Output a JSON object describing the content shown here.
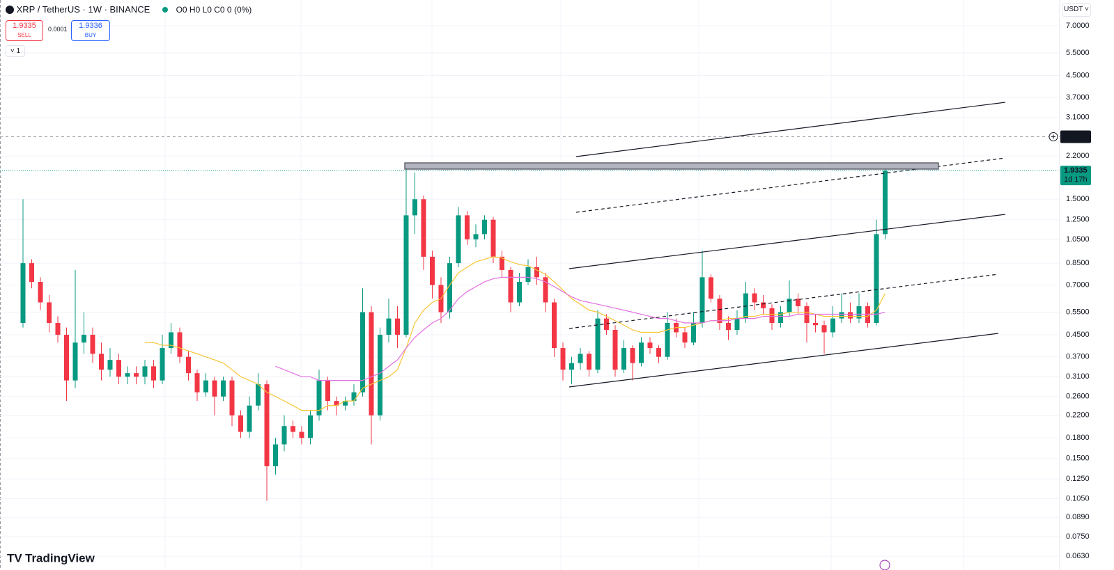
{
  "header": {
    "symbol": "XRP / TetherUS · 1W · BINANCE",
    "ohlc": "O0 H0 L0 C0 0 (0%)",
    "sell_price": 1.9335,
    "sell_label": "SELL",
    "spread": 0.0001,
    "buy_price": 1.9336,
    "buy_label": "BUY",
    "indicators": 1,
    "currency": "USDT"
  },
  "chart_data": {
    "type": "candlestick",
    "candles": [
      [
        0.5,
        1.5,
        0.48,
        0.85
      ],
      [
        0.85,
        0.88,
        0.68,
        0.72
      ],
      [
        0.72,
        0.75,
        0.56,
        0.6
      ],
      [
        0.6,
        0.64,
        0.46,
        0.5
      ],
      [
        0.5,
        0.53,
        0.42,
        0.45
      ],
      [
        0.45,
        0.48,
        0.25,
        0.3
      ],
      [
        0.3,
        0.8,
        0.28,
        0.42
      ],
      [
        0.42,
        0.55,
        0.38,
        0.45
      ],
      [
        0.45,
        0.48,
        0.35,
        0.38
      ],
      [
        0.38,
        0.42,
        0.3,
        0.33
      ],
      [
        0.33,
        0.4,
        0.31,
        0.36
      ],
      [
        0.36,
        0.38,
        0.29,
        0.31
      ],
      [
        0.31,
        0.34,
        0.29,
        0.32
      ],
      [
        0.32,
        0.34,
        0.29,
        0.31
      ],
      [
        0.31,
        0.36,
        0.29,
        0.34
      ],
      [
        0.34,
        0.36,
        0.28,
        0.3
      ],
      [
        0.3,
        0.45,
        0.29,
        0.4
      ],
      [
        0.4,
        0.5,
        0.38,
        0.46
      ],
      [
        0.46,
        0.48,
        0.35,
        0.37
      ],
      [
        0.37,
        0.39,
        0.3,
        0.32
      ],
      [
        0.32,
        0.33,
        0.25,
        0.27
      ],
      [
        0.27,
        0.32,
        0.26,
        0.3
      ],
      [
        0.3,
        0.31,
        0.22,
        0.26
      ],
      [
        0.26,
        0.31,
        0.25,
        0.3
      ],
      [
        0.3,
        0.31,
        0.2,
        0.22
      ],
      [
        0.22,
        0.23,
        0.18,
        0.19
      ],
      [
        0.19,
        0.26,
        0.18,
        0.24
      ],
      [
        0.24,
        0.32,
        0.23,
        0.29
      ],
      [
        0.29,
        0.3,
        0.103,
        0.14
      ],
      [
        0.14,
        0.18,
        0.13,
        0.17
      ],
      [
        0.17,
        0.22,
        0.16,
        0.2
      ],
      [
        0.2,
        0.21,
        0.18,
        0.19
      ],
      [
        0.19,
        0.2,
        0.17,
        0.18
      ],
      [
        0.18,
        0.23,
        0.17,
        0.22
      ],
      [
        0.22,
        0.33,
        0.21,
        0.3
      ],
      [
        0.3,
        0.31,
        0.23,
        0.25
      ],
      [
        0.25,
        0.26,
        0.22,
        0.24
      ],
      [
        0.24,
        0.26,
        0.23,
        0.25
      ],
      [
        0.25,
        0.29,
        0.24,
        0.27
      ],
      [
        0.27,
        0.68,
        0.26,
        0.55
      ],
      [
        0.55,
        0.58,
        0.17,
        0.22
      ],
      [
        0.22,
        0.48,
        0.21,
        0.45
      ],
      [
        0.45,
        0.62,
        0.42,
        0.52
      ],
      [
        0.52,
        0.58,
        0.4,
        0.45
      ],
      [
        0.45,
        1.96,
        0.44,
        1.3
      ],
      [
        1.3,
        1.9,
        1.1,
        1.5
      ],
      [
        1.5,
        1.55,
        0.8,
        0.9
      ],
      [
        0.9,
        0.95,
        0.62,
        0.7
      ],
      [
        0.7,
        0.75,
        0.5,
        0.55
      ],
      [
        0.55,
        0.9,
        0.52,
        0.85
      ],
      [
        0.85,
        1.4,
        0.82,
        1.3
      ],
      [
        1.3,
        1.35,
        1.0,
        1.05
      ],
      [
        1.05,
        1.2,
        0.98,
        1.1
      ],
      [
        1.1,
        1.3,
        1.05,
        1.25
      ],
      [
        1.25,
        1.28,
        0.85,
        0.9
      ],
      [
        0.9,
        0.95,
        0.75,
        0.8
      ],
      [
        0.8,
        0.82,
        0.55,
        0.6
      ],
      [
        0.6,
        0.78,
        0.58,
        0.72
      ],
      [
        0.72,
        0.88,
        0.7,
        0.82
      ],
      [
        0.82,
        0.9,
        0.7,
        0.75
      ],
      [
        0.75,
        0.78,
        0.55,
        0.6
      ],
      [
        0.6,
        0.62,
        0.37,
        0.4
      ],
      [
        0.4,
        0.42,
        0.3,
        0.33
      ],
      [
        0.33,
        0.37,
        0.29,
        0.35
      ],
      [
        0.35,
        0.4,
        0.33,
        0.38
      ],
      [
        0.38,
        0.39,
        0.31,
        0.33
      ],
      [
        0.33,
        0.56,
        0.32,
        0.52
      ],
      [
        0.52,
        0.54,
        0.45,
        0.47
      ],
      [
        0.47,
        0.49,
        0.31,
        0.33
      ],
      [
        0.33,
        0.43,
        0.32,
        0.4
      ],
      [
        0.4,
        0.41,
        0.3,
        0.35
      ],
      [
        0.35,
        0.44,
        0.34,
        0.42
      ],
      [
        0.42,
        0.44,
        0.38,
        0.4
      ],
      [
        0.4,
        0.41,
        0.35,
        0.37
      ],
      [
        0.37,
        0.55,
        0.36,
        0.5
      ],
      [
        0.5,
        0.52,
        0.44,
        0.46
      ],
      [
        0.46,
        0.48,
        0.4,
        0.42
      ],
      [
        0.42,
        0.55,
        0.41,
        0.5
      ],
      [
        0.5,
        0.95,
        0.48,
        0.75
      ],
      [
        0.75,
        0.77,
        0.6,
        0.62
      ],
      [
        0.62,
        0.64,
        0.47,
        0.5
      ],
      [
        0.5,
        0.53,
        0.43,
        0.47
      ],
      [
        0.47,
        0.56,
        0.45,
        0.52
      ],
      [
        0.52,
        0.72,
        0.5,
        0.65
      ],
      [
        0.65,
        0.68,
        0.56,
        0.6
      ],
      [
        0.6,
        0.64,
        0.54,
        0.57
      ],
      [
        0.57,
        0.59,
        0.47,
        0.5
      ],
      [
        0.5,
        0.58,
        0.48,
        0.55
      ],
      [
        0.55,
        0.73,
        0.53,
        0.62
      ],
      [
        0.62,
        0.65,
        0.54,
        0.58
      ],
      [
        0.58,
        0.6,
        0.42,
        0.5
      ],
      [
        0.5,
        0.54,
        0.46,
        0.49
      ],
      [
        0.49,
        0.51,
        0.38,
        0.46
      ],
      [
        0.46,
        0.58,
        0.44,
        0.52
      ],
      [
        0.52,
        0.65,
        0.5,
        0.55
      ],
      [
        0.55,
        0.6,
        0.5,
        0.52
      ],
      [
        0.52,
        0.65,
        0.5,
        0.58
      ],
      [
        0.58,
        0.6,
        0.48,
        0.5
      ],
      [
        0.5,
        1.25,
        0.49,
        1.1
      ],
      [
        1.1,
        1.96,
        1.05,
        1.9335
      ]
    ],
    "up_color": "#089981",
    "down_color": "#f23645",
    "moving_averages": [
      {
        "color": "#f7c531",
        "values": [
          null,
          null,
          null,
          null,
          null,
          null,
          null,
          null,
          null,
          null,
          null,
          null,
          null,
          null,
          0.42,
          0.42,
          0.41,
          0.41,
          0.4,
          0.39,
          0.38,
          0.37,
          0.36,
          0.35,
          0.33,
          0.31,
          0.3,
          0.29,
          0.27,
          0.26,
          0.25,
          0.24,
          0.23,
          0.23,
          0.23,
          0.24,
          0.24,
          0.25,
          0.25,
          0.28,
          0.29,
          0.3,
          0.31,
          0.33,
          0.4,
          0.5,
          0.56,
          0.6,
          0.62,
          0.7,
          0.78,
          0.82,
          0.86,
          0.88,
          0.9,
          0.89,
          0.86,
          0.84,
          0.83,
          0.8,
          0.77,
          0.72,
          0.67,
          0.62,
          0.59,
          0.56,
          0.55,
          0.53,
          0.51,
          0.49,
          0.47,
          0.46,
          0.46,
          0.46,
          0.47,
          0.48,
          0.48,
          0.49,
          0.5,
          0.51,
          0.51,
          0.52,
          0.52,
          0.53,
          0.53,
          0.54,
          0.54,
          0.54,
          0.55,
          0.55,
          0.55,
          0.54,
          0.53,
          0.53,
          0.53,
          0.53,
          0.53,
          0.53,
          0.56,
          0.65
        ]
      },
      {
        "color": "#e46fe0",
        "values": [
          null,
          null,
          null,
          null,
          null,
          null,
          null,
          null,
          null,
          null,
          null,
          null,
          null,
          null,
          null,
          null,
          null,
          null,
          null,
          null,
          null,
          null,
          null,
          null,
          null,
          null,
          null,
          null,
          null,
          0.34,
          0.33,
          0.32,
          0.31,
          0.31,
          0.3,
          0.3,
          0.3,
          0.3,
          0.3,
          0.3,
          0.31,
          0.32,
          0.34,
          0.36,
          0.4,
          0.44,
          0.47,
          0.5,
          0.52,
          0.56,
          0.62,
          0.66,
          0.69,
          0.72,
          0.74,
          0.75,
          0.75,
          0.75,
          0.75,
          0.74,
          0.72,
          0.69,
          0.66,
          0.63,
          0.61,
          0.6,
          0.59,
          0.58,
          0.57,
          0.56,
          0.55,
          0.54,
          0.53,
          0.52,
          0.52,
          0.51,
          0.5,
          0.5,
          0.5,
          0.51,
          0.51,
          0.51,
          0.52,
          0.52,
          0.52,
          0.53,
          0.53,
          0.53,
          0.53,
          0.54,
          0.54,
          0.54,
          0.54,
          0.54,
          0.54,
          0.54,
          0.54,
          0.54,
          0.54,
          0.55
        ]
      }
    ],
    "log_scale": true,
    "grid": true,
    "ylim": [
      0.0615,
      8.8
    ],
    "yticks": [
      {
        "value": 7,
        "label": "7.0000"
      },
      {
        "value": 5.5,
        "label": "5.5000"
      },
      {
        "value": 4.5,
        "label": "4.5000"
      },
      {
        "value": 3.7,
        "label": "3.7000"
      },
      {
        "value": 3.1,
        "label": "3.1000"
      },
      {
        "value": 2.2,
        "label": "2.2000"
      },
      {
        "value": 1.5,
        "label": "1.5000"
      },
      {
        "value": 1.25,
        "label": "1.2500"
      },
      {
        "value": 1.05,
        "label": "1.0500"
      },
      {
        "value": 0.85,
        "label": "0.8500"
      },
      {
        "value": 0.7,
        "label": "0.7000"
      },
      {
        "value": 0.55,
        "label": "0.5500"
      },
      {
        "value": 0.45,
        "label": "0.4500"
      },
      {
        "value": 0.37,
        "label": "0.3700"
      },
      {
        "value": 0.31,
        "label": "0.3100"
      },
      {
        "value": 0.26,
        "label": "0.2600"
      },
      {
        "value": 0.22,
        "label": "0.2200"
      },
      {
        "value": 0.18,
        "label": "0.1800"
      },
      {
        "value": 0.15,
        "label": "0.1500"
      },
      {
        "value": 0.125,
        "label": "0.1250"
      },
      {
        "value": 0.105,
        "label": "0.1050"
      },
      {
        "value": 0.089,
        "label": "0.0890"
      },
      {
        "value": 0.075,
        "label": "0.0750"
      },
      {
        "value": 0.063,
        "label": "0.0630"
      }
    ],
    "alert_price": 2.6121,
    "last_price": 1.9335,
    "countdown": "1d 17h"
  },
  "footer": {
    "logo": "TradingView"
  }
}
